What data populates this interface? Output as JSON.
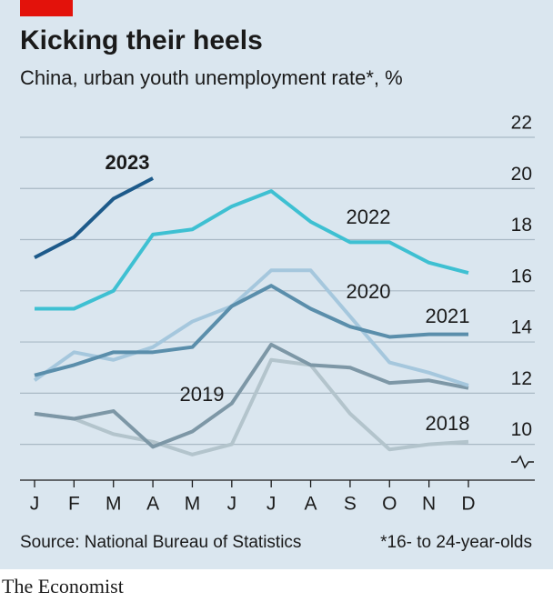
{
  "chart_data": {
    "type": "line",
    "title": "Kicking their heels",
    "subtitle": "China, urban youth unemployment rate*, %",
    "source": "Source: National Bureau of Statistics",
    "note": "*16- to 24-year-olds",
    "brand": "The Economist",
    "categories": [
      "J",
      "F",
      "M",
      "A",
      "M",
      "J",
      "J",
      "A",
      "S",
      "O",
      "N",
      "D"
    ],
    "ylim": [
      8.6,
      22
    ],
    "yticks": [
      10,
      12,
      14,
      16,
      18,
      20,
      22
    ],
    "grid": true,
    "series": [
      {
        "name": "2018",
        "color": "#b3c4cc",
        "values": [
          11.2,
          11.0,
          10.4,
          10.1,
          9.6,
          10.0,
          13.3,
          13.1,
          11.2,
          9.8,
          10.0,
          10.1
        ]
      },
      {
        "name": "2019",
        "color": "#7d97a6",
        "values": [
          11.2,
          11.0,
          11.3,
          9.9,
          10.5,
          11.6,
          13.9,
          13.1,
          13.0,
          12.4,
          12.5,
          12.2
        ]
      },
      {
        "name": "2020",
        "color": "#a5c7dd",
        "values": [
          12.5,
          13.6,
          13.3,
          13.8,
          14.8,
          15.4,
          16.8,
          16.8,
          15.0,
          13.2,
          12.8,
          12.3
        ]
      },
      {
        "name": "2021",
        "color": "#5a8eab",
        "values": [
          12.7,
          13.1,
          13.6,
          13.6,
          13.8,
          15.4,
          16.2,
          15.3,
          14.6,
          14.2,
          14.3,
          14.3
        ]
      },
      {
        "name": "2022",
        "color": "#3ec0d2",
        "values": [
          15.3,
          15.3,
          16.0,
          18.2,
          18.4,
          19.3,
          19.9,
          18.7,
          17.9,
          17.9,
          17.1,
          16.7
        ]
      },
      {
        "name": "2023",
        "color": "#1d5a8a",
        "values": [
          17.3,
          18.1,
          19.6,
          20.4,
          null,
          null,
          null,
          null,
          null,
          null,
          null,
          null
        ]
      }
    ]
  }
}
